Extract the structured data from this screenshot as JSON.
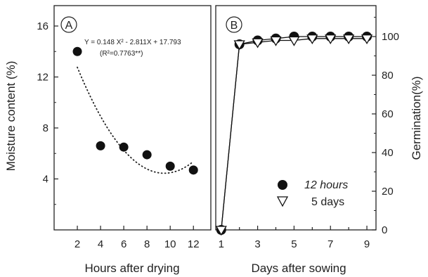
{
  "chart_data": [
    {
      "type": "scatter",
      "panel_label": "A",
      "xlabel": "Hours after drying",
      "ylabel": "Moisture content (%)",
      "x_ticks": [
        2,
        4,
        6,
        8,
        10,
        12
      ],
      "y_ticks": [
        4,
        8,
        12,
        16
      ],
      "xlim": [
        0,
        13.5
      ],
      "ylim": [
        0,
        17.6
      ],
      "series": [
        {
          "x": [
            2,
            4,
            6,
            8,
            10,
            12
          ],
          "y": [
            14.0,
            6.6,
            6.5,
            5.9,
            5.0,
            4.7
          ]
        }
      ],
      "fit": {
        "a": 0.148,
        "b": -2.811,
        "c": 17.793,
        "style": "dotted"
      },
      "equation": "Y = 0.148 X² - 2.811X + 17.793",
      "r2": "(R²=0.7763**)",
      "grid": false
    },
    {
      "type": "line",
      "panel_label": "B",
      "xlabel": "Days after sowing",
      "ylabel": "Germination(%)",
      "x_ticks": [
        1,
        3,
        5,
        7,
        9
      ],
      "y_ticks": [
        0,
        20,
        40,
        60,
        80,
        100
      ],
      "xlim": [
        0.7,
        9.5
      ],
      "ylim": [
        0,
        116
      ],
      "legend_position": "bottom-right",
      "series": [
        {
          "name": "12 hours",
          "marker": "filled-circle",
          "x": [
            1,
            2,
            3,
            4,
            5,
            6,
            7,
            8,
            9
          ],
          "y": [
            0,
            96,
            98,
            99,
            100,
            100,
            100,
            100,
            100
          ]
        },
        {
          "name": "5 days",
          "marker": "open-triangle",
          "x": [
            1,
            2,
            3,
            4,
            5,
            6,
            7,
            8,
            9
          ],
          "y": [
            0,
            96,
            97,
            98,
            98,
            99,
            99,
            99,
            99
          ]
        }
      ],
      "grid": false
    }
  ]
}
